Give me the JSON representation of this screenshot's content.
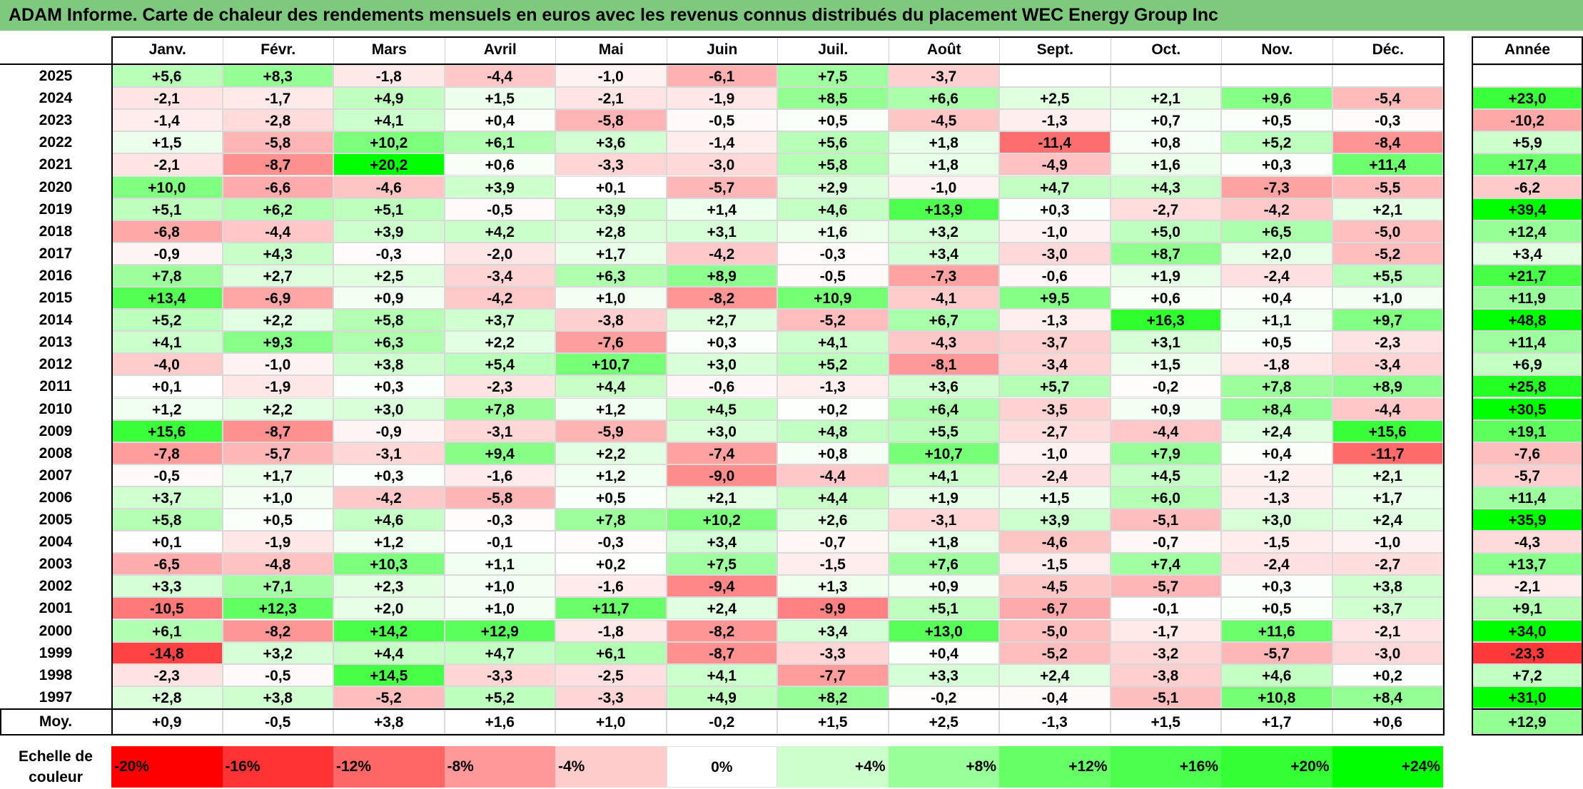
{
  "title": "ADAM Informe. Carte de chaleur des rendements mensuels en euros avec les revenus connus distribués du placement WEC Energy Group Inc",
  "chart_data": {
    "type": "heatmap",
    "title": "ADAM Informe. Carte de chaleur des rendements mensuels en euros avec les revenus connus distribués du placement WEC Energy Group Inc",
    "columns": [
      "Janv.",
      "Févr.",
      "Mars",
      "Avril",
      "Mai",
      "Juin",
      "Juil.",
      "Août",
      "Sept.",
      "Oct.",
      "Nov.",
      "Déc."
    ],
    "year_header": "Année",
    "rows": [
      {
        "year": "2025",
        "values": [
          "+5,6",
          "+8,3",
          "-1,8",
          "-4,4",
          "-1,0",
          "-6,1",
          "+7,5",
          "-3,7",
          "",
          "",
          "",
          ""
        ],
        "annual": ""
      },
      {
        "year": "2024",
        "values": [
          "-2,1",
          "-1,7",
          "+4,9",
          "+1,5",
          "-2,1",
          "-1,9",
          "+8,5",
          "+6,6",
          "+2,5",
          "+2,1",
          "+9,6",
          "-5,4"
        ],
        "annual": "+23,0"
      },
      {
        "year": "2023",
        "values": [
          "-1,4",
          "-2,8",
          "+4,1",
          "+0,4",
          "-5,8",
          "-0,5",
          "+0,5",
          "-4,5",
          "-1,3",
          "+0,7",
          "+0,5",
          "-0,3"
        ],
        "annual": "-10,2"
      },
      {
        "year": "2022",
        "values": [
          "+1,5",
          "-5,8",
          "+10,2",
          "+6,1",
          "+3,6",
          "-1,4",
          "+5,6",
          "+1,8",
          "-11,4",
          "+0,8",
          "+5,2",
          "-8,4"
        ],
        "annual": "+5,9"
      },
      {
        "year": "2021",
        "values": [
          "-2,1",
          "-8,7",
          "+20,2",
          "+0,6",
          "-3,3",
          "-3,0",
          "+5,8",
          "+1,8",
          "-4,9",
          "+1,6",
          "+0,3",
          "+11,4"
        ],
        "annual": "+17,4"
      },
      {
        "year": "2020",
        "values": [
          "+10,0",
          "-6,6",
          "-4,6",
          "+3,9",
          "+0,1",
          "-5,7",
          "+2,9",
          "-1,0",
          "+4,7",
          "+4,3",
          "-7,3",
          "-5,5"
        ],
        "annual": "-6,2"
      },
      {
        "year": "2019",
        "values": [
          "+5,1",
          "+6,2",
          "+5,1",
          "-0,5",
          "+3,9",
          "+1,4",
          "+4,6",
          "+13,9",
          "+0,3",
          "-2,7",
          "-4,2",
          "+2,1"
        ],
        "annual": "+39,4"
      },
      {
        "year": "2018",
        "values": [
          "-6,8",
          "-4,4",
          "+3,9",
          "+4,2",
          "+2,8",
          "+3,1",
          "+1,6",
          "+3,2",
          "-1,0",
          "+5,0",
          "+6,5",
          "-5,0"
        ],
        "annual": "+12,4"
      },
      {
        "year": "2017",
        "values": [
          "-0,9",
          "+4,3",
          "-0,3",
          "-2,0",
          "+1,7",
          "-4,2",
          "-0,3",
          "+3,4",
          "-3,0",
          "+8,7",
          "+2,0",
          "-5,2"
        ],
        "annual": "+3,4"
      },
      {
        "year": "2016",
        "values": [
          "+7,8",
          "+2,7",
          "+2,5",
          "-3,4",
          "+6,3",
          "+8,9",
          "-0,5",
          "-7,3",
          "-0,6",
          "+1,9",
          "-2,4",
          "+5,5"
        ],
        "annual": "+21,7"
      },
      {
        "year": "2015",
        "values": [
          "+13,4",
          "-6,9",
          "+0,9",
          "-4,2",
          "+1,0",
          "-8,2",
          "+10,9",
          "-4,1",
          "+9,5",
          "+0,6",
          "+0,4",
          "+1,0"
        ],
        "annual": "+11,9"
      },
      {
        "year": "2014",
        "values": [
          "+5,2",
          "+2,2",
          "+5,8",
          "+3,7",
          "-3,8",
          "+2,7",
          "-5,2",
          "+6,7",
          "-1,3",
          "+16,3",
          "+1,1",
          "+9,7"
        ],
        "annual": "+48,8"
      },
      {
        "year": "2013",
        "values": [
          "+4,1",
          "+9,3",
          "+6,3",
          "+2,2",
          "-7,6",
          "+0,3",
          "+4,1",
          "-4,3",
          "-3,7",
          "+3,1",
          "+0,5",
          "-2,3"
        ],
        "annual": "+11,4"
      },
      {
        "year": "2012",
        "values": [
          "-4,0",
          "-1,0",
          "+3,8",
          "+5,4",
          "+10,7",
          "+3,0",
          "+5,2",
          "-8,1",
          "-3,4",
          "+1,5",
          "-1,8",
          "-3,4"
        ],
        "annual": "+6,9"
      },
      {
        "year": "2011",
        "values": [
          "+0,1",
          "-1,9",
          "+0,3",
          "-2,3",
          "+4,4",
          "-0,6",
          "-1,3",
          "+3,6",
          "+5,7",
          "-0,2",
          "+7,8",
          "+8,9"
        ],
        "annual": "+25,8"
      },
      {
        "year": "2010",
        "values": [
          "+1,2",
          "+2,2",
          "+3,0",
          "+7,8",
          "+1,2",
          "+4,5",
          "+0,2",
          "+6,4",
          "-3,5",
          "+0,9",
          "+8,4",
          "-4,4"
        ],
        "annual": "+30,5"
      },
      {
        "year": "2009",
        "values": [
          "+15,6",
          "-8,7",
          "-0,9",
          "-3,1",
          "-5,9",
          "+3,0",
          "+4,8",
          "+5,5",
          "-2,7",
          "-4,4",
          "+2,4",
          "+15,6"
        ],
        "annual": "+19,1"
      },
      {
        "year": "2008",
        "values": [
          "-7,8",
          "-5,7",
          "-3,1",
          "+9,4",
          "+2,2",
          "-7,4",
          "+0,8",
          "+10,7",
          "-1,0",
          "+7,9",
          "+0,4",
          "-11,7"
        ],
        "annual": "-7,6"
      },
      {
        "year": "2007",
        "values": [
          "-0,5",
          "+1,7",
          "+0,3",
          "-1,6",
          "+1,2",
          "-9,0",
          "-4,4",
          "+4,1",
          "-2,4",
          "+4,5",
          "-1,2",
          "+2,1"
        ],
        "annual": "-5,7"
      },
      {
        "year": "2006",
        "values": [
          "+3,7",
          "+1,0",
          "-4,2",
          "-5,8",
          "+0,5",
          "+2,1",
          "+4,4",
          "+1,9",
          "+1,5",
          "+6,0",
          "-1,3",
          "+1,7"
        ],
        "annual": "+11,4"
      },
      {
        "year": "2005",
        "values": [
          "+5,8",
          "+0,5",
          "+4,6",
          "-0,3",
          "+7,8",
          "+10,2",
          "+2,6",
          "-3,1",
          "+3,9",
          "-5,1",
          "+3,0",
          "+2,4"
        ],
        "annual": "+35,9"
      },
      {
        "year": "2004",
        "values": [
          "+0,1",
          "-1,9",
          "+1,2",
          "-0,1",
          "-0,3",
          "+3,4",
          "-0,7",
          "+1,8",
          "-4,6",
          "-0,7",
          "-1,5",
          "-1,0"
        ],
        "annual": "-4,3"
      },
      {
        "year": "2003",
        "values": [
          "-6,5",
          "-4,8",
          "+10,3",
          "+1,1",
          "+0,2",
          "+7,5",
          "-1,5",
          "+7,6",
          "-1,5",
          "+7,4",
          "-2,4",
          "-2,7"
        ],
        "annual": "+13,7"
      },
      {
        "year": "2002",
        "values": [
          "+3,3",
          "+7,1",
          "+2,3",
          "+1,0",
          "-1,6",
          "-9,4",
          "+1,3",
          "+0,9",
          "-4,5",
          "-5,7",
          "+0,3",
          "+3,8"
        ],
        "annual": "-2,1"
      },
      {
        "year": "2001",
        "values": [
          "-10,5",
          "+12,3",
          "+2,0",
          "+1,0",
          "+11,7",
          "+2,4",
          "-9,9",
          "+5,1",
          "-6,7",
          "-0,1",
          "+0,5",
          "+3,7"
        ],
        "annual": "+9,1"
      },
      {
        "year": "2000",
        "values": [
          "+6,1",
          "-8,2",
          "+14,2",
          "+12,9",
          "-1,8",
          "-8,2",
          "+3,4",
          "+13,0",
          "-5,0",
          "-1,7",
          "+11,6",
          "-2,1"
        ],
        "annual": "+34,0"
      },
      {
        "year": "1999",
        "values": [
          "-14,8",
          "+3,2",
          "+4,4",
          "+4,7",
          "+6,1",
          "-8,7",
          "-3,3",
          "+0,4",
          "-5,2",
          "-3,2",
          "-5,7",
          "-3,0"
        ],
        "annual": "-23,3"
      },
      {
        "year": "1998",
        "values": [
          "-2,3",
          "-0,5",
          "+14,5",
          "-3,3",
          "-2,5",
          "+4,1",
          "-7,7",
          "+3,3",
          "+2,4",
          "-3,8",
          "+4,6",
          "+0,2"
        ],
        "annual": "+7,2"
      },
      {
        "year": "1997",
        "values": [
          "+2,8",
          "+3,8",
          "-5,2",
          "+5,2",
          "-3,3",
          "+4,9",
          "+8,2",
          "-0,2",
          "-0,4",
          "-5,1",
          "+10,8",
          "+8,4"
        ],
        "annual": "+31,0"
      }
    ],
    "average": {
      "label": "Moy.",
      "values": [
        "+0,9",
        "-0,5",
        "+3,8",
        "+1,6",
        "+1,0",
        "-0,2",
        "+1,5",
        "+2,5",
        "-1,3",
        "+1,5",
        "+1,7",
        "+0,6"
      ],
      "annual": "+12,9"
    },
    "scale": {
      "label_line1": "Echelle de",
      "label_line2": "couleur",
      "steps": [
        {
          "label": "-20%",
          "color": "#ff0000"
        },
        {
          "label": "-16%",
          "color": "#ff3333"
        },
        {
          "label": "-12%",
          "color": "#ff6666"
        },
        {
          "label": "-8%",
          "color": "#ff9999"
        },
        {
          "label": "-4%",
          "color": "#ffcccc"
        },
        {
          "label": "0%",
          "color": "#ffffff"
        },
        {
          "label": "+4%",
          "color": "#ccffcc"
        },
        {
          "label": "+8%",
          "color": "#99ff99"
        },
        {
          "label": "+12%",
          "color": "#66ff66"
        },
        {
          "label": "+16%",
          "color": "#4dff4d"
        },
        {
          "label": "+20%",
          "color": "#33ff33"
        },
        {
          "label": "+24%",
          "color": "#00ff00"
        }
      ]
    },
    "colors": {
      "title_bar": "#7fc97f",
      "positive_max": "#00ff00",
      "negative_max": "#ff0000",
      "neutral": "#ffffff"
    }
  }
}
